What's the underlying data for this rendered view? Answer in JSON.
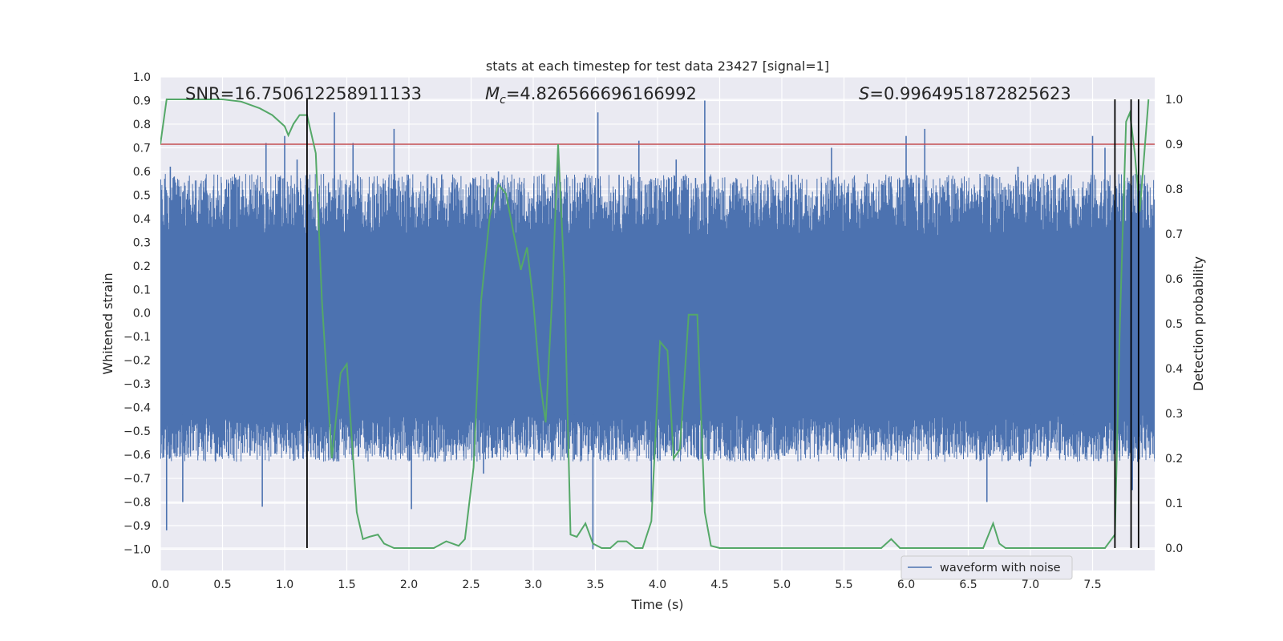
{
  "chart_data": {
    "type": "line",
    "title": "stats at each timestep for test data 23427 [signal=1]",
    "xlabel": "Time (s)",
    "ylabel_left": "Whitened strain",
    "ylabel_right": "Detection probability",
    "xlim": [
      0,
      8.0
    ],
    "ylim_left": [
      -1.09,
      1.0
    ],
    "ylim_right": [
      -0.05,
      1.05
    ],
    "x_ticks": [
      "0.0",
      "0.5",
      "1.0",
      "1.5",
      "2.0",
      "2.5",
      "3.0",
      "3.5",
      "4.0",
      "4.5",
      "5.0",
      "5.5",
      "6.0",
      "6.5",
      "7.0",
      "7.5"
    ],
    "y_ticks_left": [
      "1.0",
      "0.9",
      "0.8",
      "0.7",
      "0.6",
      "0.5",
      "0.4",
      "0.3",
      "0.2",
      "0.1",
      "0.0",
      "−0.1",
      "−0.2",
      "−0.3",
      "−0.4",
      "−0.5",
      "−0.6",
      "−0.7",
      "−0.8",
      "−0.9",
      "−1.0"
    ],
    "y_ticks_right": [
      "1.0",
      "0.9",
      "0.8",
      "0.7",
      "0.6",
      "0.5",
      "0.4",
      "0.3",
      "0.2",
      "0.1",
      "0.0"
    ],
    "grid": true,
    "legend": {
      "placement": "lower-right",
      "entries": [
        "waveform with noise"
      ]
    },
    "annotations": {
      "snr": "SNR=16.750612258911133",
      "mc_symbol": "M",
      "mc_sub": "c",
      "mc_value": "=4.826566696166992",
      "s_symbol": "S",
      "s_value": "=0.9964951872825623"
    },
    "threshold": {
      "value": 0.9,
      "axis": "right",
      "color": "#c44e52"
    },
    "vertical_markers": [
      1.18,
      7.68,
      7.81,
      7.87
    ],
    "series": [
      {
        "name": "waveform with noise",
        "axis": "left",
        "color": "#4c72b0",
        "style": "noise",
        "body_range": [
          -0.43,
          0.33
        ],
        "spikes": [
          [
            0.08,
            0.62
          ],
          [
            0.05,
            -0.92
          ],
          [
            0.18,
            -0.8
          ],
          [
            0.35,
            0.5
          ],
          [
            0.55,
            0.55
          ],
          [
            0.82,
            -0.82
          ],
          [
            0.85,
            0.72
          ],
          [
            1.0,
            0.75
          ],
          [
            1.1,
            0.65
          ],
          [
            1.23,
            0.4
          ],
          [
            1.4,
            0.85
          ],
          [
            1.55,
            0.72
          ],
          [
            1.68,
            -0.55
          ],
          [
            1.88,
            0.78
          ],
          [
            2.02,
            -0.83
          ],
          [
            2.2,
            0.55
          ],
          [
            2.6,
            -0.68
          ],
          [
            2.72,
            0.6
          ],
          [
            2.9,
            -0.55
          ],
          [
            3.2,
            0.7
          ],
          [
            3.33,
            -0.62
          ],
          [
            3.48,
            -1.0
          ],
          [
            3.52,
            0.85
          ],
          [
            3.85,
            0.73
          ],
          [
            3.95,
            -0.8
          ],
          [
            4.15,
            0.65
          ],
          [
            4.38,
            0.9
          ],
          [
            5.4,
            0.7
          ],
          [
            5.45,
            -0.55
          ],
          [
            5.7,
            0.55
          ],
          [
            6.0,
            0.75
          ],
          [
            6.15,
            0.78
          ],
          [
            6.3,
            -0.6
          ],
          [
            6.45,
            0.55
          ],
          [
            6.65,
            -0.8
          ],
          [
            6.9,
            0.62
          ],
          [
            7.0,
            -0.65
          ],
          [
            7.2,
            0.58
          ],
          [
            7.35,
            -0.6
          ],
          [
            7.5,
            0.75
          ],
          [
            7.6,
            0.7
          ],
          [
            7.82,
            -0.75
          ]
        ]
      },
      {
        "name": "",
        "axis": "right",
        "color": "#55a868",
        "x": [
          0.0,
          0.05,
          0.1,
          0.3,
          0.5,
          0.65,
          0.8,
          0.9,
          1.0,
          1.03,
          1.07,
          1.12,
          1.18,
          1.25,
          1.3,
          1.38,
          1.45,
          1.5,
          1.58,
          1.63,
          1.68,
          1.75,
          1.8,
          1.88,
          2.0,
          2.1,
          2.2,
          2.3,
          2.4,
          2.45,
          2.52,
          2.58,
          2.65,
          2.72,
          2.78,
          2.85,
          2.9,
          2.95,
          3.0,
          3.05,
          3.1,
          3.15,
          3.2,
          3.25,
          3.3,
          3.35,
          3.42,
          3.48,
          3.55,
          3.62,
          3.68,
          3.75,
          3.82,
          3.88,
          3.95,
          4.02,
          4.08,
          4.13,
          4.18,
          4.25,
          4.32,
          4.38,
          4.43,
          4.5,
          4.6,
          4.8,
          5.0,
          5.2,
          5.35,
          5.5,
          5.65,
          5.8,
          5.88,
          5.95,
          6.05,
          6.2,
          6.35,
          6.45,
          6.55,
          6.62,
          6.7,
          6.75,
          6.8,
          6.9,
          7.0,
          7.1,
          7.3,
          7.45,
          7.6,
          7.68,
          7.72,
          7.77,
          7.8,
          7.84,
          7.88,
          7.95
        ],
        "y": [
          0.9,
          1.0,
          1.0,
          1.0,
          1.0,
          0.995,
          0.98,
          0.965,
          0.94,
          0.92,
          0.945,
          0.965,
          0.965,
          0.88,
          0.55,
          0.2,
          0.39,
          0.41,
          0.08,
          0.02,
          0.025,
          0.03,
          0.01,
          0.0,
          0.0,
          0.0,
          0.0,
          0.015,
          0.005,
          0.02,
          0.18,
          0.55,
          0.74,
          0.81,
          0.79,
          0.69,
          0.62,
          0.67,
          0.55,
          0.38,
          0.28,
          0.55,
          0.9,
          0.6,
          0.03,
          0.025,
          0.055,
          0.01,
          0.0,
          0.0,
          0.015,
          0.015,
          0.0,
          0.0,
          0.06,
          0.46,
          0.44,
          0.2,
          0.22,
          0.52,
          0.52,
          0.08,
          0.005,
          0.0,
          0.0,
          0.0,
          0.0,
          0.0,
          0.0,
          0.0,
          0.0,
          0.0,
          0.02,
          0.0,
          0.0,
          0.0,
          0.0,
          0.0,
          0.0,
          0.0,
          0.055,
          0.01,
          0.0,
          0.0,
          0.0,
          0.0,
          0.0,
          0.0,
          0.0,
          0.03,
          0.5,
          0.95,
          0.97,
          0.88,
          0.75,
          1.0
        ]
      }
    ]
  }
}
